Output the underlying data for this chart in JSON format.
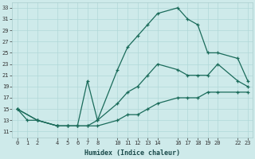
{
  "xlabel": "Humidex (Indice chaleur)",
  "bg_color": "#ceeaea",
  "line_color": "#1a6b5a",
  "grid_color": "#b0d8d8",
  "xlim": [
    -0.5,
    23.5
  ],
  "ylim": [
    10,
    34
  ],
  "xticks": [
    0,
    1,
    2,
    4,
    5,
    6,
    7,
    8,
    10,
    11,
    12,
    13,
    14,
    16,
    17,
    18,
    19,
    20,
    22,
    23
  ],
  "yticks": [
    11,
    13,
    15,
    17,
    19,
    21,
    23,
    25,
    27,
    29,
    31,
    33
  ],
  "line1_x": [
    0,
    1,
    2,
    4,
    5,
    6,
    7,
    8,
    10,
    11,
    12,
    13,
    14,
    16,
    17,
    18,
    19,
    20,
    22,
    23
  ],
  "line1_y": [
    15,
    13,
    13,
    12,
    12,
    12,
    12,
    13,
    22,
    26,
    28,
    30,
    32,
    33,
    31,
    30,
    25,
    25,
    24,
    20
  ],
  "line2_x": [
    0,
    2,
    4,
    5,
    6,
    7,
    8,
    10,
    11,
    12,
    13,
    14,
    16,
    17,
    18,
    19,
    20,
    22,
    23
  ],
  "line2_y": [
    15,
    13,
    12,
    12,
    12,
    20,
    13,
    16,
    18,
    19,
    21,
    23,
    22,
    21,
    21,
    21,
    23,
    20,
    19
  ],
  "line3_x": [
    0,
    2,
    4,
    5,
    6,
    7,
    8,
    10,
    11,
    12,
    13,
    14,
    16,
    17,
    18,
    19,
    20,
    22,
    23
  ],
  "line3_y": [
    15,
    13,
    12,
    12,
    12,
    12,
    12,
    13,
    14,
    14,
    15,
    16,
    17,
    17,
    17,
    18,
    18,
    18,
    18
  ]
}
